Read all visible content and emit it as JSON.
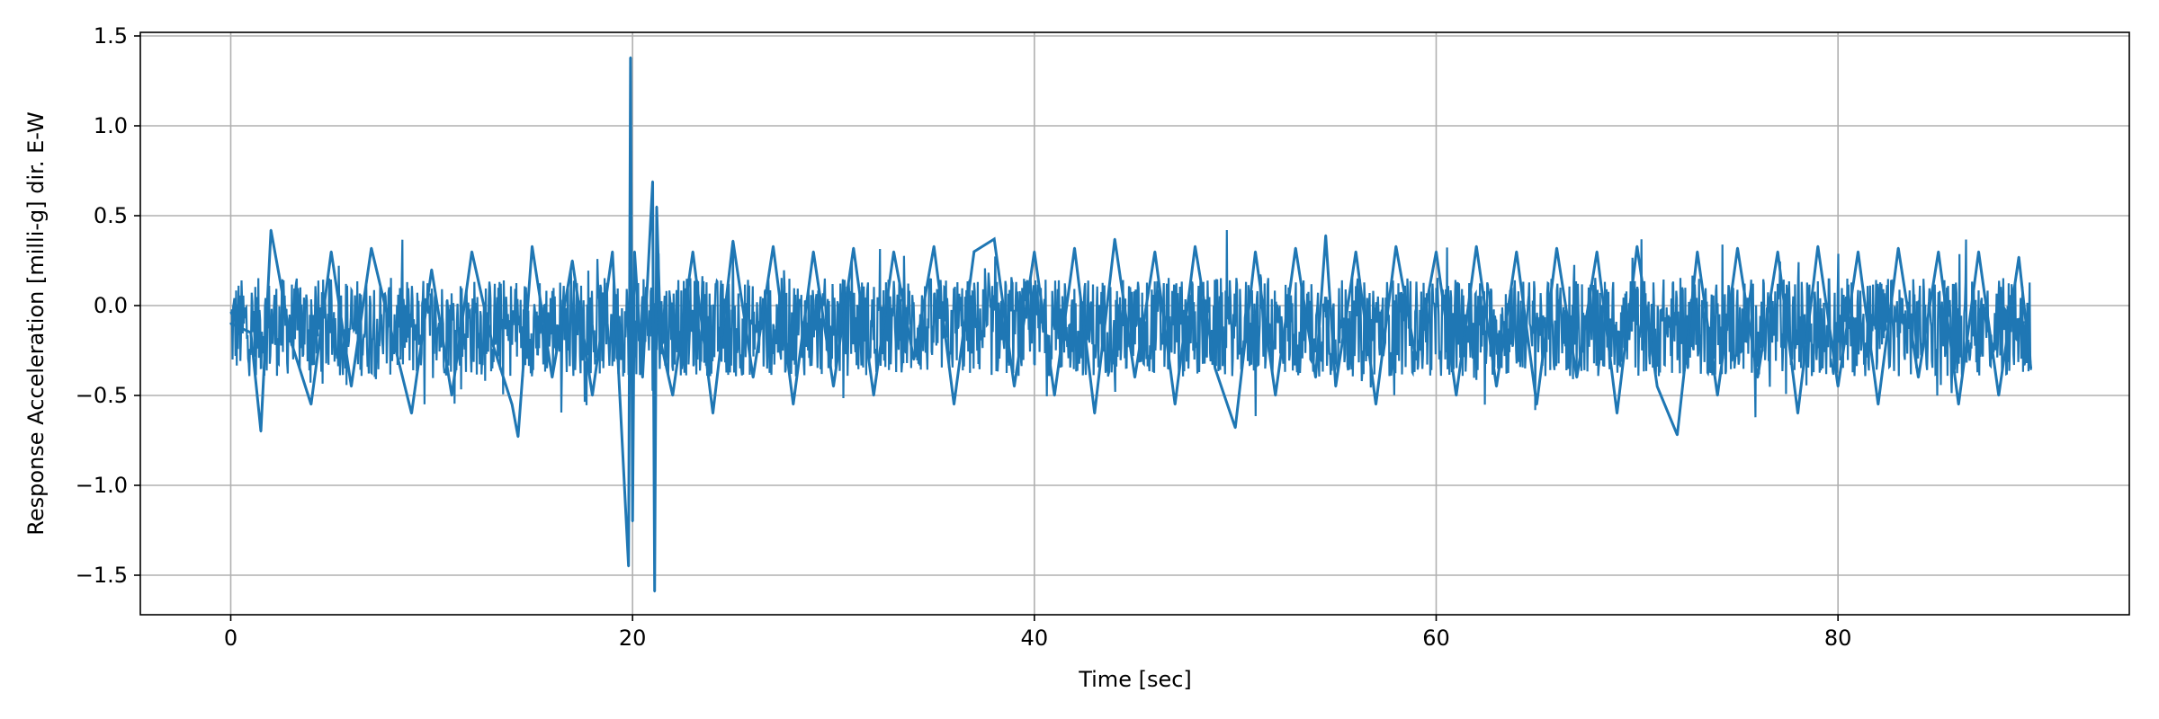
{
  "chart_data": {
    "type": "line",
    "title": "",
    "xlabel": "Time [sec]",
    "ylabel": "Response Acceleration [milli-g] dir. E-W",
    "xlim": [
      -4.5,
      94.5
    ],
    "ylim": [
      -1.72,
      1.52
    ],
    "x_ticks": [
      0,
      20,
      40,
      60,
      80
    ],
    "y_ticks": [
      -1.5,
      -1.0,
      -0.5,
      0.0,
      0.5,
      1.0,
      1.5
    ],
    "x_tick_labels": [
      "0",
      "20",
      "40",
      "60",
      "80"
    ],
    "y_tick_labels": [
      "−1.5",
      "−1.0",
      "−0.5",
      "0.0",
      "0.5",
      "1.0",
      "1.5"
    ],
    "grid": true,
    "series": [
      {
        "color": "#1f77b4",
        "x": [
          0.0,
          1.0,
          1.5,
          2.0,
          3.0,
          4.0,
          5.0,
          6.0,
          7.0,
          8.0,
          9.0,
          10.0,
          11.0,
          12.0,
          13.0,
          14.0,
          14.3,
          15.0,
          16.0,
          17.0,
          18.0,
          19.0,
          19.8,
          19.9,
          20.0,
          20.1,
          20.5,
          21.0,
          21.1,
          21.2,
          21.4,
          22.0,
          23.0,
          24.0,
          25.0,
          26.0,
          27.0,
          28.0,
          29.0,
          30.0,
          31.0,
          32.0,
          33.0,
          34.0,
          35.0,
          36.0,
          37.0,
          38.0,
          39.0,
          40.0,
          41.0,
          42.0,
          43.0,
          44.0,
          45.0,
          46.0,
          47.0,
          48.0,
          49.0,
          50.0,
          51.0,
          52.0,
          53.0,
          54.0,
          54.5,
          55.0,
          56.0,
          57.0,
          58.0,
          59.0,
          60.0,
          61.0,
          62.0,
          63.0,
          64.0,
          65.0,
          66.0,
          67.0,
          68.0,
          69.0,
          70.0,
          71.0,
          72.0,
          73.0,
          74.0,
          75.0,
          76.0,
          77.0,
          78.0,
          79.0,
          80.0,
          81.0,
          82.0,
          83.0,
          84.0,
          85.0,
          86.0,
          87.0,
          88.0,
          89.0,
          89.6
        ],
        "y": [
          -0.1,
          -0.15,
          -0.7,
          0.42,
          -0.2,
          -0.55,
          0.3,
          -0.45,
          0.32,
          -0.15,
          -0.6,
          0.2,
          -0.5,
          0.3,
          -0.2,
          -0.55,
          -0.73,
          0.33,
          -0.4,
          0.25,
          -0.5,
          0.3,
          -1.45,
          1.38,
          -1.2,
          0.3,
          -0.4,
          0.69,
          -1.59,
          0.55,
          -0.2,
          -0.5,
          0.3,
          -0.6,
          0.36,
          -0.4,
          0.33,
          -0.55,
          0.3,
          -0.45,
          0.32,
          -0.5,
          0.3,
          -0.3,
          0.33,
          -0.55,
          0.3,
          0.37,
          -0.45,
          0.3,
          -0.5,
          0.32,
          -0.6,
          0.37,
          -0.4,
          0.3,
          -0.55,
          0.33,
          -0.35,
          -0.68,
          0.3,
          -0.5,
          0.32,
          -0.4,
          0.39,
          -0.45,
          0.3,
          -0.55,
          0.33,
          -0.3,
          0.3,
          -0.5,
          0.33,
          -0.45,
          0.3,
          -0.55,
          0.32,
          -0.4,
          0.3,
          -0.6,
          0.33,
          -0.45,
          -0.72,
          0.3,
          -0.5,
          0.32,
          -0.4,
          0.3,
          -0.6,
          0.33,
          -0.45,
          0.3,
          -0.55,
          0.32,
          -0.4,
          0.3,
          -0.55,
          0.3,
          -0.5,
          0.27,
          -0.35
        ]
      }
    ]
  }
}
